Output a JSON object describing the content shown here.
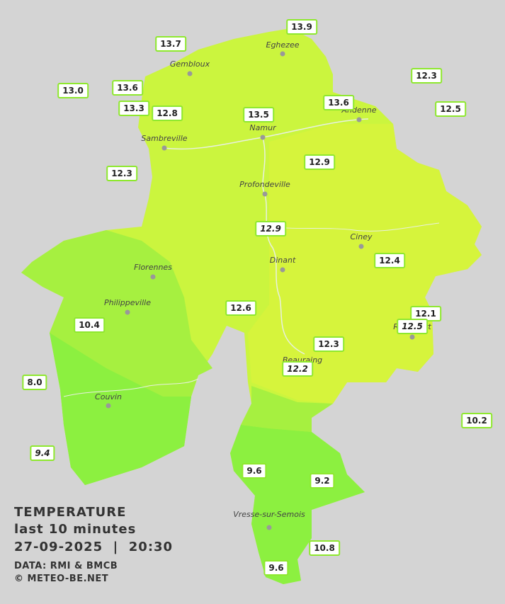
{
  "legend": {
    "title": "TEMPERATURE",
    "subtitle": "last 10 minutes",
    "datetime": "27-09-2025  |  20:30",
    "source": "DATA: RMI & BMCB",
    "credit": "© METEO-BE.NET"
  },
  "towns": [
    "Eghezee",
    "Gembloux",
    "Andenne",
    "Namur",
    "Sambreville",
    "Profondeville",
    "Ciney",
    "Dinant",
    "Florennes",
    "Philippeville",
    "Couvin",
    "Vresse-sur-Semois",
    "Rochefort",
    "Beauraing"
  ],
  "readings": [
    {
      "value": "13.9",
      "italic": false
    },
    {
      "value": "13.7",
      "italic": false
    },
    {
      "value": "12.3",
      "italic": false
    },
    {
      "value": "13.0",
      "italic": false
    },
    {
      "value": "13.6",
      "italic": false
    },
    {
      "value": "13.3",
      "italic": false
    },
    {
      "value": "12.8",
      "italic": false
    },
    {
      "value": "13.5",
      "italic": false
    },
    {
      "value": "13.6",
      "italic": false
    },
    {
      "value": "12.5",
      "italic": false
    },
    {
      "value": "12.3",
      "italic": false
    },
    {
      "value": "12.9",
      "italic": false
    },
    {
      "value": "12.9",
      "italic": true
    },
    {
      "value": "12.4",
      "italic": false
    },
    {
      "value": "10.4",
      "italic": false
    },
    {
      "value": "12.6",
      "italic": false
    },
    {
      "value": "12.1",
      "italic": false
    },
    {
      "value": "12.5",
      "italic": true
    },
    {
      "value": "12.3",
      "italic": false
    },
    {
      "value": "12.2",
      "italic": true
    },
    {
      "value": "8.0",
      "italic": false
    },
    {
      "value": "10.2",
      "italic": false
    },
    {
      "value": "9.4",
      "italic": true
    },
    {
      "value": "9.6",
      "italic": false
    },
    {
      "value": "9.2",
      "italic": false
    },
    {
      "value": "10.8",
      "italic": false
    },
    {
      "value": "9.6",
      "italic": false
    }
  ]
}
